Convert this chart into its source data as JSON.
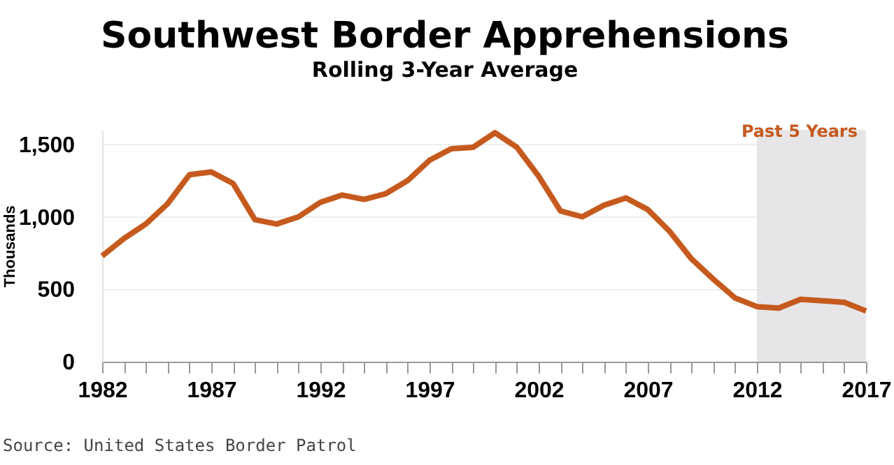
{
  "chart_data": {
    "type": "line",
    "title": "Southwest Border Apprehensions",
    "subtitle": "Rolling 3-Year Average",
    "ylabel": "Thousands",
    "x": [
      1982,
      1983,
      1984,
      1985,
      1986,
      1987,
      1988,
      1989,
      1990,
      1991,
      1992,
      1993,
      1994,
      1995,
      1996,
      1997,
      1998,
      1999,
      2000,
      2001,
      2002,
      2003,
      2004,
      2005,
      2006,
      2007,
      2008,
      2009,
      2010,
      2011,
      2012,
      2013,
      2014,
      2015,
      2016,
      2017
    ],
    "series": [
      {
        "color": "#c65a1e",
        "values": [
          730,
          850,
          950,
          1090,
          1290,
          1310,
          1230,
          980,
          950,
          1000,
          1100,
          1150,
          1120,
          1160,
          1250,
          1390,
          1470,
          1480,
          1580,
          1480,
          1280,
          1040,
          1000,
          1080,
          1130,
          1050,
          900,
          710,
          570,
          440,
          380,
          370,
          430,
          420,
          410,
          350
        ]
      }
    ],
    "xlim": [
      1982,
      2017
    ],
    "xticks": [
      1982,
      {
        "value": 1983,
        "label": null
      },
      {
        "value": 1984,
        "label": null
      },
      {
        "value": 1985,
        "label": null
      },
      {
        "value": 1986,
        "label": null
      },
      1987,
      {
        "value": 1988,
        "label": null
      },
      {
        "value": 1989,
        "label": null
      },
      {
        "value": 1990,
        "label": null
      },
      {
        "value": 1991,
        "label": null
      },
      1992,
      {
        "value": 1993,
        "label": null
      },
      {
        "value": 1994,
        "label": null
      },
      {
        "value": 1995,
        "label": null
      },
      {
        "value": 1996,
        "label": null
      },
      1997,
      {
        "value": 1998,
        "label": null
      },
      {
        "value": 1999,
        "label": null
      },
      {
        "value": 2000,
        "label": null
      },
      {
        "value": 2001,
        "label": null
      },
      2002,
      {
        "value": 2003,
        "label": null
      },
      {
        "value": 2004,
        "label": null
      },
      {
        "value": 2005,
        "label": null
      },
      {
        "value": 2006,
        "label": null
      },
      2007,
      {
        "value": 2008,
        "label": null
      },
      {
        "value": 2009,
        "label": null
      },
      {
        "value": 2010,
        "label": null
      },
      {
        "value": 2011,
        "label": null
      },
      2012,
      {
        "value": 2013,
        "label": null
      },
      {
        "value": 2014,
        "label": null
      },
      {
        "value": 2015,
        "label": null
      },
      {
        "value": 2016,
        "label": null
      },
      2017
    ],
    "ylim": [
      0,
      1600
    ],
    "yticks": [
      0,
      500,
      {
        "value": 1000,
        "label": "1,000"
      },
      {
        "value": 1500,
        "label": "1,500"
      }
    ],
    "grid": "y",
    "legend": false,
    "marker": "none",
    "line_style": "solid",
    "bands": [
      {
        "axis": "x",
        "from": 2012,
        "to": 2017,
        "label": "Past 5 Years",
        "color": "#e6e6e9"
      }
    ],
    "annotations": [
      "Source: United States Border Patrol"
    ]
  }
}
